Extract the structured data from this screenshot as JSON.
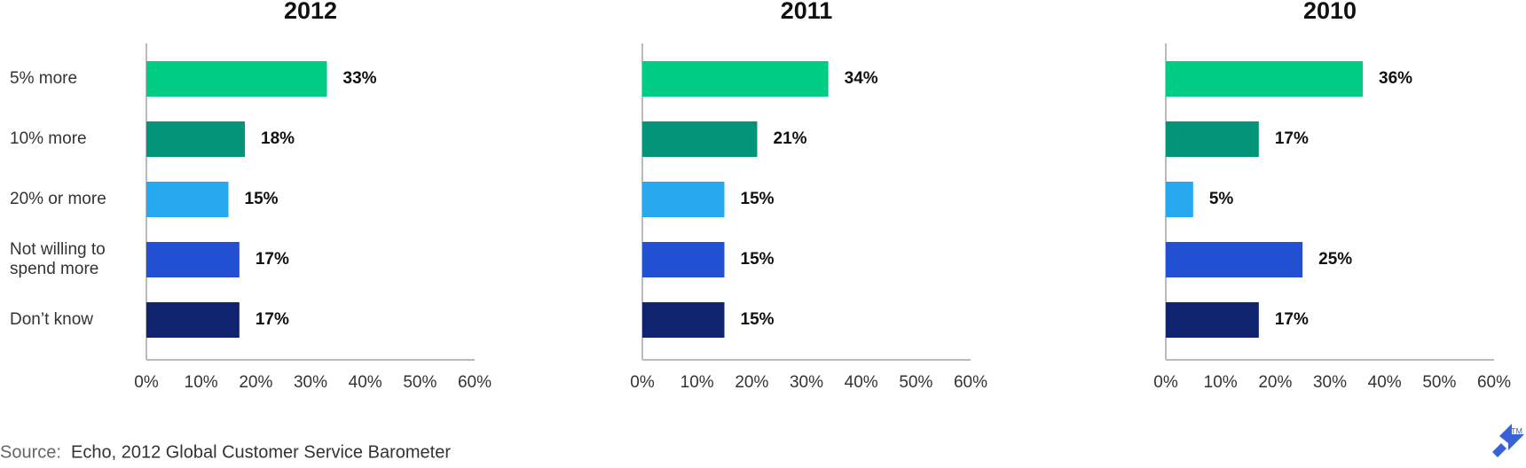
{
  "chart_data": [
    {
      "type": "bar",
      "title": "2012",
      "categories": [
        "5% more",
        "10% more",
        "20% or more",
        "Not willing to spend more",
        "Don’t know"
      ],
      "values": [
        33,
        18,
        15,
        17,
        17
      ],
      "value_labels": [
        "33%",
        "18%",
        "15%",
        "17%",
        "17%"
      ],
      "colors": [
        "#00cc83",
        "#039479",
        "#27a9ef",
        "#2250d2",
        "#10236e"
      ],
      "xlim": [
        0,
        60
      ],
      "xticks": [
        {
          "value": 0,
          "label": "0%"
        },
        {
          "value": 10,
          "label": "10%"
        },
        {
          "value": 20,
          "label": "20%"
        },
        {
          "value": 30,
          "label": "30%"
        },
        {
          "value": 40,
          "label": "40%"
        },
        {
          "value": 50,
          "label": "50%"
        },
        {
          "value": 60,
          "label": "60%"
        }
      ]
    },
    {
      "type": "bar",
      "title": "2011",
      "values": [
        34,
        21,
        15,
        15,
        15
      ],
      "value_labels": [
        "34%",
        "21%",
        "15%",
        "15%",
        "15%"
      ],
      "colors": [
        "#00cc83",
        "#039479",
        "#27a9ef",
        "#2250d2",
        "#10236e"
      ],
      "xlim": [
        0,
        60
      ],
      "xticks": [
        {
          "value": 0,
          "label": "0%"
        },
        {
          "value": 10,
          "label": "10%"
        },
        {
          "value": 20,
          "label": "20%"
        },
        {
          "value": 30,
          "label": "30%"
        },
        {
          "value": 40,
          "label": "40%"
        },
        {
          "value": 50,
          "label": "50%"
        },
        {
          "value": 60,
          "label": "60%"
        }
      ]
    },
    {
      "type": "bar",
      "title": "2010",
      "values": [
        36,
        17,
        5,
        25,
        17
      ],
      "value_labels": [
        "36%",
        "17%",
        "5%",
        "25%",
        "17%"
      ],
      "colors": [
        "#00cc83",
        "#039479",
        "#27a9ef",
        "#2250d2",
        "#10236e"
      ],
      "xlim": [
        0,
        60
      ],
      "xticks": [
        {
          "value": 0,
          "label": "0%"
        },
        {
          "value": 10,
          "label": "10%"
        },
        {
          "value": 20,
          "label": "20%"
        },
        {
          "value": 30,
          "label": "30%"
        },
        {
          "value": 40,
          "label": "40%"
        },
        {
          "value": 50,
          "label": "50%"
        },
        {
          "value": 60,
          "label": "60%"
        }
      ]
    }
  ],
  "source": {
    "label": "Source:",
    "text": "Echo, 2012 Global Customer Service Barometer"
  },
  "trademark": "TM"
}
